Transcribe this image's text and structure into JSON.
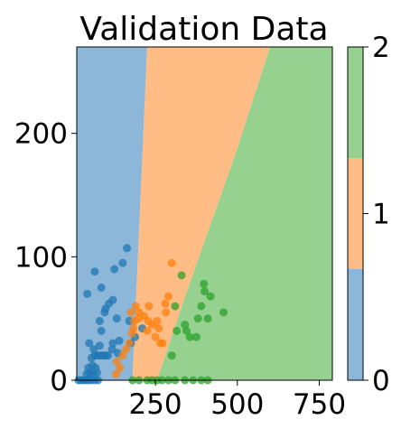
{
  "chart_data": {
    "type": "scatter",
    "title": "Validation Data",
    "xlabel": "",
    "ylabel": "",
    "xlim": [
      10,
      790
    ],
    "ylim": [
      0,
      270
    ],
    "x_ticks": [
      250,
      500,
      750
    ],
    "x_tick_labels": [
      "250",
      "500",
      "750"
    ],
    "y_ticks": [
      0,
      100,
      200
    ],
    "y_tick_labels": [
      "0",
      "100",
      "200"
    ],
    "colorbar": {
      "range": [
        0,
        2
      ],
      "ticks": [
        0,
        1,
        2
      ],
      "tick_labels": [
        "0",
        "1",
        "2"
      ],
      "colors": [
        "#8cb7d8",
        "#ffbd85",
        "#96d18f"
      ]
    },
    "regions": {
      "class0_right_boundary": [
        [
          180,
          0
        ],
        [
          225,
          270
        ]
      ],
      "class1_right_boundary": [
        [
          255,
          0
        ],
        [
          350,
          75
        ],
        [
          490,
          180
        ],
        [
          600,
          270
        ]
      ]
    },
    "series": [
      {
        "class": 0,
        "color": "#1f77b4",
        "points": [
          [
            15,
            0
          ],
          [
            22,
            0
          ],
          [
            30,
            0
          ],
          [
            38,
            0
          ],
          [
            45,
            0
          ],
          [
            55,
            0
          ],
          [
            65,
            0
          ],
          [
            75,
            0
          ],
          [
            40,
            5
          ],
          [
            50,
            6
          ],
          [
            60,
            5
          ],
          [
            72,
            6
          ],
          [
            45,
            10
          ],
          [
            58,
            12
          ],
          [
            68,
            10
          ],
          [
            55,
            18
          ],
          [
            65,
            20
          ],
          [
            75,
            20
          ],
          [
            82,
            20
          ],
          [
            90,
            20
          ],
          [
            98,
            20
          ],
          [
            105,
            20
          ],
          [
            62,
            25
          ],
          [
            80,
            28
          ],
          [
            118,
            25
          ],
          [
            48,
            30
          ],
          [
            120,
            30
          ],
          [
            135,
            22
          ],
          [
            140,
            32
          ],
          [
            85,
            40
          ],
          [
            80,
            48
          ],
          [
            95,
            55
          ],
          [
            132,
            50
          ],
          [
            120,
            65
          ],
          [
            108,
            62
          ],
          [
            98,
            58
          ],
          [
            42,
            70
          ],
          [
            85,
            75
          ],
          [
            125,
            90
          ],
          [
            65,
            88
          ],
          [
            150,
            95
          ],
          [
            163,
            107
          ],
          [
            175,
            30
          ],
          [
            170,
            48
          ],
          [
            188,
            35
          ],
          [
            210,
            42
          ]
        ]
      },
      {
        "class": 1,
        "color": "#ff7f0e",
        "points": [
          [
            130,
            5
          ],
          [
            142,
            10
          ],
          [
            132,
            15
          ],
          [
            150,
            20
          ],
          [
            160,
            25
          ],
          [
            170,
            30
          ],
          [
            178,
            38
          ],
          [
            183,
            42
          ],
          [
            185,
            48
          ],
          [
            175,
            55
          ],
          [
            190,
            60
          ],
          [
            200,
            55
          ],
          [
            215,
            52
          ],
          [
            228,
            48
          ],
          [
            225,
            40
          ],
          [
            240,
            45
          ],
          [
            250,
            35
          ],
          [
            255,
            48
          ],
          [
            260,
            42
          ],
          [
            265,
            30
          ],
          [
            272,
            30
          ],
          [
            282,
            55
          ],
          [
            290,
            68
          ],
          [
            300,
            95
          ],
          [
            280,
            62
          ],
          [
            230,
            60
          ],
          [
            198,
            50
          ]
        ]
      },
      {
        "class": 2,
        "color": "#2ca02c",
        "points": [
          [
            180,
            0
          ],
          [
            200,
            0
          ],
          [
            225,
            0
          ],
          [
            240,
            0
          ],
          [
            255,
            0
          ],
          [
            270,
            0
          ],
          [
            290,
            0
          ],
          [
            310,
            0
          ],
          [
            340,
            0
          ],
          [
            365,
            0
          ],
          [
            390,
            0
          ],
          [
            410,
            0
          ],
          [
            300,
            20
          ],
          [
            315,
            40
          ],
          [
            340,
            45
          ],
          [
            345,
            40
          ],
          [
            355,
            35
          ],
          [
            375,
            35
          ],
          [
            390,
            60
          ],
          [
            398,
            78
          ],
          [
            410,
            50
          ],
          [
            418,
            68
          ],
          [
            458,
            55
          ],
          [
            330,
            85
          ],
          [
            310,
            60
          ],
          [
            380,
            50
          ],
          [
            400,
            72
          ]
        ]
      }
    ]
  }
}
